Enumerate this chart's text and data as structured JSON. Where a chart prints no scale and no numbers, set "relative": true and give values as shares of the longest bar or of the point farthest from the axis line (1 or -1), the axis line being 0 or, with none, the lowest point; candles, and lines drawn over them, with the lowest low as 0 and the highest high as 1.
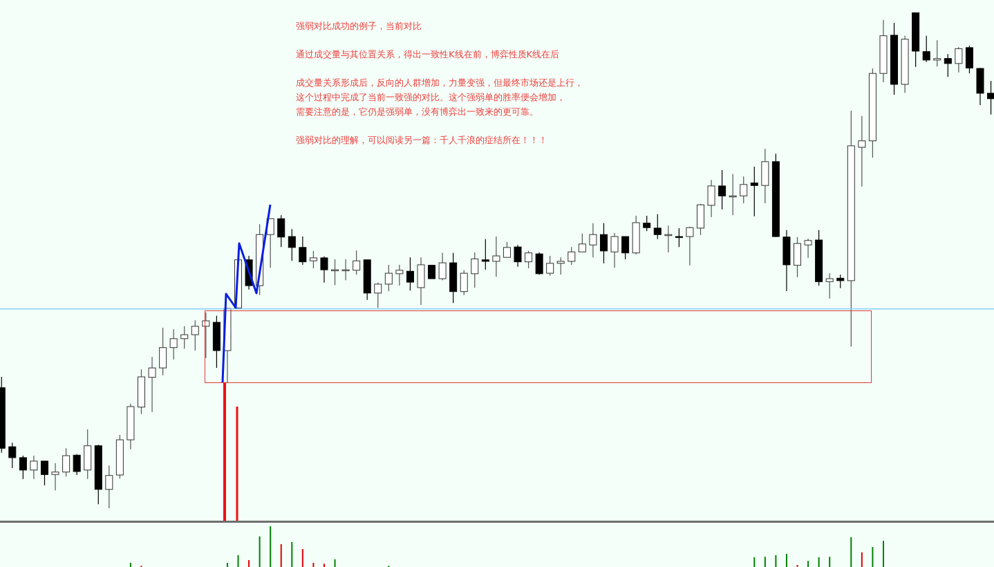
{
  "chart_data": [
    {
      "type": "candlestick",
      "relative": true,
      "annotations": [
        "强弱对比成功的例子，当前对比",
        "通过成交量与其位置关系，得出一致性K线在前，博弈性质K线在后",
        "成交量关系形成后，反向的人群增加，力量变强，但最终市场还是上行，",
        "这个过程中完成了当前一致强的对比。这个强弱单的胜率便会增加，",
        "需要注意的是，它仍是强弱单，没有博弈出一致来的更可靠。",
        "强弱对比的理解，可以阅读另一篇：千人千浪的症结所在！！！"
      ],
      "ref_lines": [
        {
          "axis": "y",
          "value": 0.402,
          "color": "#87cefa"
        }
      ],
      "categories": [
        null,
        null,
        null,
        null,
        null,
        null,
        null,
        null,
        null,
        null,
        null,
        null,
        null,
        null,
        null,
        null,
        null,
        null,
        null,
        null,
        null,
        null,
        null,
        null,
        null,
        null,
        null,
        null,
        null,
        null,
        null,
        null,
        null,
        null,
        null,
        null,
        null,
        null,
        null,
        null,
        null,
        null,
        null,
        null,
        null,
        null,
        null,
        null,
        null,
        null,
        null,
        null,
        null,
        null,
        null,
        null,
        null,
        null,
        null,
        null,
        null,
        null,
        null,
        null,
        null,
        null,
        null,
        null,
        null,
        null,
        null,
        null,
        null,
        null,
        null,
        null,
        null,
        null,
        null,
        null,
        null,
        null,
        null,
        null,
        null,
        null,
        null,
        null,
        null,
        null,
        null,
        null,
        null
      ],
      "ohlc": [
        [
          0.243,
          0.265,
          0.112,
          0.121
        ],
        [
          0.124,
          0.132,
          0.081,
          0.102
        ],
        [
          0.102,
          0.106,
          0.059,
          0.077
        ],
        [
          0.077,
          0.106,
          0.059,
          0.095
        ],
        [
          0.095,
          0.095,
          0.046,
          0.068
        ],
        [
          0.068,
          0.091,
          0.036,
          0.073
        ],
        [
          0.073,
          0.121,
          0.064,
          0.106
        ],
        [
          0.107,
          0.109,
          0.067,
          0.074
        ],
        [
          0.077,
          0.159,
          0.059,
          0.126
        ],
        [
          0.126,
          0.128,
          0.008,
          0.038
        ],
        [
          0.038,
          0.086,
          0,
          0.066
        ],
        [
          0.067,
          0.148,
          0.06,
          0.138
        ],
        [
          0.138,
          0.211,
          0.119,
          0.205
        ],
        [
          0.204,
          0.28,
          0.19,
          0.265
        ],
        [
          0.264,
          0.305,
          0.194,
          0.283
        ],
        [
          0.283,
          0.364,
          0.268,
          0.324
        ],
        [
          0.324,
          0.361,
          0.3,
          0.342
        ],
        [
          0.342,
          0.367,
          0.322,
          0.35
        ],
        [
          0.35,
          0.379,
          0.318,
          0.367
        ],
        [
          0.367,
          0.395,
          0.303,
          0.378
        ],
        [
          0.375,
          0.388,
          0.283,
          0.318
        ],
        [
          0.318,
          0.404,
          0.254,
          0.403
        ],
        [
          0.404,
          0.502,
          0.403,
          0.501
        ],
        [
          0.501,
          0.509,
          0.441,
          0.449
        ],
        [
          0.449,
          0.573,
          0.43,
          0.552
        ],
        [
          0.552,
          0.584,
          0.485,
          0.584
        ],
        [
          0.584,
          0.591,
          0.527,
          0.547
        ],
        [
          0.548,
          0.563,
          0.499,
          0.526
        ],
        [
          0.526,
          0.548,
          0.491,
          0.497
        ],
        [
          0.499,
          0.519,
          0.484,
          0.505
        ],
        [
          0.505,
          0.508,
          0.455,
          0.481
        ],
        [
          0.481,
          0.502,
          0.45,
          0.481
        ],
        [
          0.481,
          0.502,
          0.46,
          0.481
        ],
        [
          0.48,
          0.52,
          0.471,
          0.499
        ],
        [
          0.501,
          0.501,
          0.42,
          0.434
        ],
        [
          0.434,
          0.455,
          0.404,
          0.452
        ],
        [
          0.452,
          0.491,
          0.438,
          0.474
        ],
        [
          0.473,
          0.491,
          0.449,
          0.48
        ],
        [
          0.478,
          0.506,
          0.439,
          0.456
        ],
        [
          0.445,
          0.506,
          0.41,
          0.491
        ],
        [
          0.49,
          0.491,
          0.463,
          0.463
        ],
        [
          0.463,
          0.515,
          0.46,
          0.495
        ],
        [
          0.495,
          0.515,
          0.414,
          0.437
        ],
        [
          0.437,
          0.48,
          0.43,
          0.474
        ],
        [
          0.473,
          0.516,
          0.445,
          0.503
        ],
        [
          0.501,
          0.543,
          0.481,
          0.498
        ],
        [
          0.498,
          0.548,
          0.467,
          0.509
        ],
        [
          0.506,
          0.537,
          0.506,
          0.526
        ],
        [
          0.527,
          0.531,
          0.487,
          0.497
        ],
        [
          0.497,
          0.519,
          0.484,
          0.515
        ],
        [
          0.513,
          0.516,
          0.471,
          0.473
        ],
        [
          0.474,
          0.509,
          0.469,
          0.494
        ],
        [
          0.494,
          0.506,
          0.471,
          0.498
        ],
        [
          0.498,
          0.527,
          0.491,
          0.517
        ],
        [
          0.517,
          0.554,
          0.517,
          0.533
        ],
        [
          0.531,
          0.575,
          0.506,
          0.552
        ],
        [
          0.552,
          0.575,
          0.494,
          0.519
        ],
        [
          0.517,
          0.555,
          0.485,
          0.548
        ],
        [
          0.548,
          0.548,
          0.502,
          0.515
        ],
        [
          0.515,
          0.59,
          0.512,
          0.576
        ],
        [
          0.575,
          0.59,
          0.559,
          0.566
        ],
        [
          0.565,
          0.593,
          0.543,
          0.552
        ],
        [
          0.552,
          0.57,
          0.516,
          0.552
        ],
        [
          0.548,
          0.565,
          0.527,
          0.547
        ],
        [
          0.548,
          0.568,
          0.49,
          0.566
        ],
        [
          0.565,
          0.614,
          0.551,
          0.612
        ],
        [
          0.611,
          0.662,
          0.587,
          0.65
        ],
        [
          0.65,
          0.682,
          0.603,
          0.63
        ],
        [
          0.63,
          0.674,
          0.591,
          0.63
        ],
        [
          0.63,
          0.669,
          0.615,
          0.653
        ],
        [
          0.656,
          0.689,
          0.589,
          0.651
        ],
        [
          0.651,
          0.725,
          0.615,
          0.699
        ],
        [
          0.699,
          0.715,
          0.547,
          0.548
        ],
        [
          0.547,
          0.561,
          0.438,
          0.491
        ],
        [
          0.49,
          0.547,
          0.466,
          0.534
        ],
        [
          0.531,
          0.544,
          0.505,
          0.54
        ],
        [
          0.541,
          0.561,
          0.449,
          0.457
        ],
        [
          0.457,
          0.474,
          0.423,
          0.463
        ],
        [
          0.464,
          0.471,
          0.444,
          0.459
        ],
        [
          0.459,
          0.802,
          0.326,
          0.731
        ],
        [
          0.728,
          0.791,
          0.649,
          0.741
        ],
        [
          0.741,
          0.887,
          0.707,
          0.877
        ],
        [
          0.877,
          0.985,
          0.859,
          0.953
        ],
        [
          0.954,
          0.979,
          0.834,
          0.855
        ],
        [
          0.855,
          0.953,
          0.838,
          0.946
        ],
        [
          1,
          1,
          0.89,
          0.922
        ],
        [
          0.921,
          0.953,
          0.9,
          0.904
        ],
        [
          0.904,
          0.944,
          0.891,
          0.907
        ],
        [
          0.907,
          0.916,
          0.87,
          0.897
        ],
        [
          0.897,
          0.93,
          0.879,
          0.927
        ],
        [
          0.929,
          0.933,
          0.877,
          0.888
        ],
        [
          0.887,
          0.888,
          0.813,
          0.837
        ],
        [
          0.837,
          0.862,
          0.794,
          0.826
        ]
      ]
    },
    {
      "type": "bar",
      "relative": true,
      "categories": [
        null,
        null,
        null,
        null,
        null,
        null,
        null,
        null,
        null,
        null,
        null,
        null,
        null,
        null,
        null,
        null,
        null,
        null,
        null,
        null,
        null,
        null,
        null,
        null,
        null,
        null,
        null,
        null,
        null,
        null,
        null,
        null,
        null,
        null,
        null,
        null,
        null,
        null,
        null,
        null,
        null,
        null,
        null,
        null,
        null,
        null,
        null,
        null,
        null,
        null,
        null,
        null,
        null,
        null,
        null,
        null,
        null,
        null,
        null,
        null,
        null,
        null,
        null,
        null,
        null,
        null,
        null,
        null,
        null,
        null,
        null,
        null,
        null,
        null,
        null,
        null,
        null,
        null,
        null,
        null,
        null,
        null,
        null,
        null,
        null,
        null,
        null,
        null,
        null,
        null,
        null,
        null,
        null
      ],
      "values": [
        null,
        null,
        null,
        null,
        null,
        null,
        null,
        null,
        null,
        null,
        null,
        null,
        0.1,
        0.03,
        null,
        null,
        null,
        null,
        null,
        null,
        null,
        0.1,
        0.29,
        0.17,
        0.75,
        1,
        0.56,
        0.61,
        0.44,
        0.1,
        0.08,
        0.19,
        null,
        null,
        null,
        null,
        0.03,
        null,
        null,
        null,
        null,
        null,
        null,
        null,
        null,
        null,
        null,
        null,
        null,
        null,
        null,
        null,
        null,
        null,
        null,
        null,
        null,
        null,
        null,
        null,
        null,
        null,
        null,
        null,
        null,
        null,
        null,
        null,
        null,
        null,
        0.24,
        0.25,
        0.29,
        0.32,
        0.05,
        0.15,
        0.24,
        0.25,
        null,
        0.73,
        0.36,
        0.49,
        0.64,
        null,
        null,
        null,
        null,
        null,
        null,
        null,
        null,
        null,
        null
      ],
      "colors": [
        null,
        null,
        null,
        null,
        null,
        null,
        null,
        null,
        null,
        null,
        null,
        null,
        "#008000",
        "#e00000",
        null,
        null,
        null,
        null,
        null,
        null,
        null,
        "#008000",
        "#008000",
        "#e00000",
        "#008000",
        "#008000",
        "#e00000",
        "#008000",
        "#e00000",
        "#e00000",
        "#e00000",
        "#008000",
        null,
        null,
        null,
        null,
        "#008000",
        null,
        null,
        null,
        null,
        null,
        null,
        null,
        null,
        null,
        null,
        null,
        null,
        null,
        null,
        null,
        null,
        null,
        null,
        null,
        null,
        null,
        null,
        null,
        null,
        null,
        null,
        null,
        null,
        null,
        null,
        null,
        null,
        null,
        "#008000",
        "#008000",
        "#008000",
        "#008000",
        "#e00000",
        "#008000",
        "#008000",
        "#008000",
        null,
        "#008000",
        "#e00000",
        "#008000",
        "#008000",
        null,
        null,
        null,
        null,
        null,
        null,
        null,
        null,
        null,
        null
      ]
    }
  ]
}
